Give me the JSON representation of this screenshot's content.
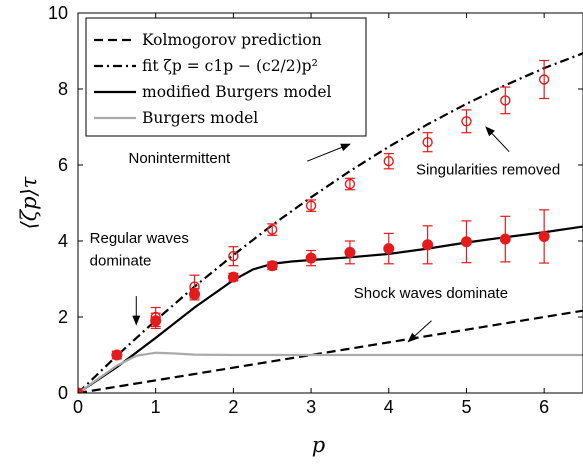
{
  "chart_data": {
    "type": "line",
    "xlabel": "p",
    "ylabel": "⟨ζp⟩τ",
    "xlim": [
      0,
      6.5
    ],
    "ylim": [
      0,
      10
    ],
    "xticks": [
      "0",
      "1",
      "2",
      "3",
      "4",
      "5",
      "6"
    ],
    "yticks": [
      "0",
      "2",
      "4",
      "6",
      "8",
      "10"
    ],
    "grid": false,
    "legend_position": "top-left",
    "series": [
      {
        "name": "Kolmogorov prediction",
        "style": "dashed",
        "color": "#000000",
        "x": [
          0,
          6.5
        ],
        "y": [
          0,
          2.1667
        ]
      },
      {
        "name": "fit ζp = c1p − (c2/2)p²",
        "style": "dashdot",
        "color": "#000000",
        "x": [
          0,
          0.5,
          1,
          1.5,
          2,
          2.5,
          3,
          3.5,
          4,
          4.5,
          5,
          5.5,
          6,
          6.5
        ],
        "y": [
          0,
          0.98,
          1.91,
          2.8,
          3.63,
          4.42,
          5.15,
          5.84,
          6.48,
          7.07,
          7.61,
          8.1,
          8.55,
          8.94
        ]
      },
      {
        "name": "modified Burgers model",
        "style": "solid",
        "color": "#000000",
        "x": [
          0,
          0.5,
          1,
          1.5,
          2,
          2.25,
          2.5,
          2.75,
          3,
          3.5,
          4,
          4.5,
          5,
          5.5,
          6,
          6.5
        ],
        "y": [
          0,
          0.68,
          1.45,
          2.25,
          2.97,
          3.25,
          3.4,
          3.46,
          3.5,
          3.57,
          3.66,
          3.8,
          3.96,
          4.1,
          4.23,
          4.38
        ]
      },
      {
        "name": "Burgers model",
        "style": "solid",
        "color": "#aaaaaa",
        "x": [
          0,
          0.5,
          0.75,
          1,
          1.25,
          1.5,
          2,
          2.5,
          3,
          4,
          5,
          6,
          6.5
        ],
        "y": [
          0,
          0.72,
          0.98,
          1.06,
          1.04,
          1.01,
          1.0,
          1.0,
          1.0,
          1.0,
          1.0,
          1.0,
          1.0
        ]
      }
    ],
    "data_series": [
      {
        "marker": "open-circle",
        "color": "#e41a1c",
        "x": [
          0.5,
          1,
          1.5,
          2,
          2.5,
          3,
          3.5,
          4,
          4.5,
          5,
          5.5,
          6
        ],
        "y": [
          1.0,
          2.0,
          2.8,
          3.6,
          4.3,
          4.93,
          5.5,
          6.1,
          6.6,
          7.15,
          7.7,
          8.25
        ],
        "yerr": [
          0.1,
          0.25,
          0.3,
          0.25,
          0.15,
          0.15,
          0.15,
          0.2,
          0.25,
          0.3,
          0.35,
          0.5
        ]
      },
      {
        "marker": "filled-circle",
        "color": "#e41a1c",
        "x": [
          0,
          0.5,
          1,
          1.5,
          2,
          2.5,
          3,
          3.5,
          4,
          4.5,
          5,
          5.5,
          6
        ],
        "y": [
          0,
          1.0,
          1.9,
          2.6,
          3.05,
          3.35,
          3.55,
          3.7,
          3.8,
          3.9,
          3.98,
          4.05,
          4.12
        ],
        "yerr": [
          0,
          0.1,
          0.2,
          0.15,
          0.1,
          0.1,
          0.2,
          0.3,
          0.4,
          0.5,
          0.55,
          0.6,
          0.7
        ]
      }
    ],
    "annotations": [
      {
        "text": "Nonintermittent",
        "x": 0.65,
        "y": 6.05,
        "arrow_from": [
          2.95,
          6.1
        ],
        "arrow_to": [
          3.5,
          6.55
        ]
      },
      {
        "text": "Singularities removed",
        "x": 4.35,
        "y": 5.75,
        "arrow_from": [
          5.55,
          6.35
        ],
        "arrow_to": [
          5.25,
          7.0
        ]
      },
      {
        "text": "Regular waves",
        "x": 0.15,
        "y": 3.95,
        "arrow_from": null,
        "arrow_to": null
      },
      {
        "text": "dominate",
        "x": 0.15,
        "y": 3.35,
        "arrow_from": [
          0.75,
          2.55
        ],
        "arrow_to": [
          0.75,
          1.8
        ]
      },
      {
        "text": "Shock waves dominate",
        "x": 3.55,
        "y": 2.5,
        "arrow_from": [
          4.55,
          1.9
        ],
        "arrow_to": [
          4.25,
          1.35
        ]
      }
    ]
  }
}
